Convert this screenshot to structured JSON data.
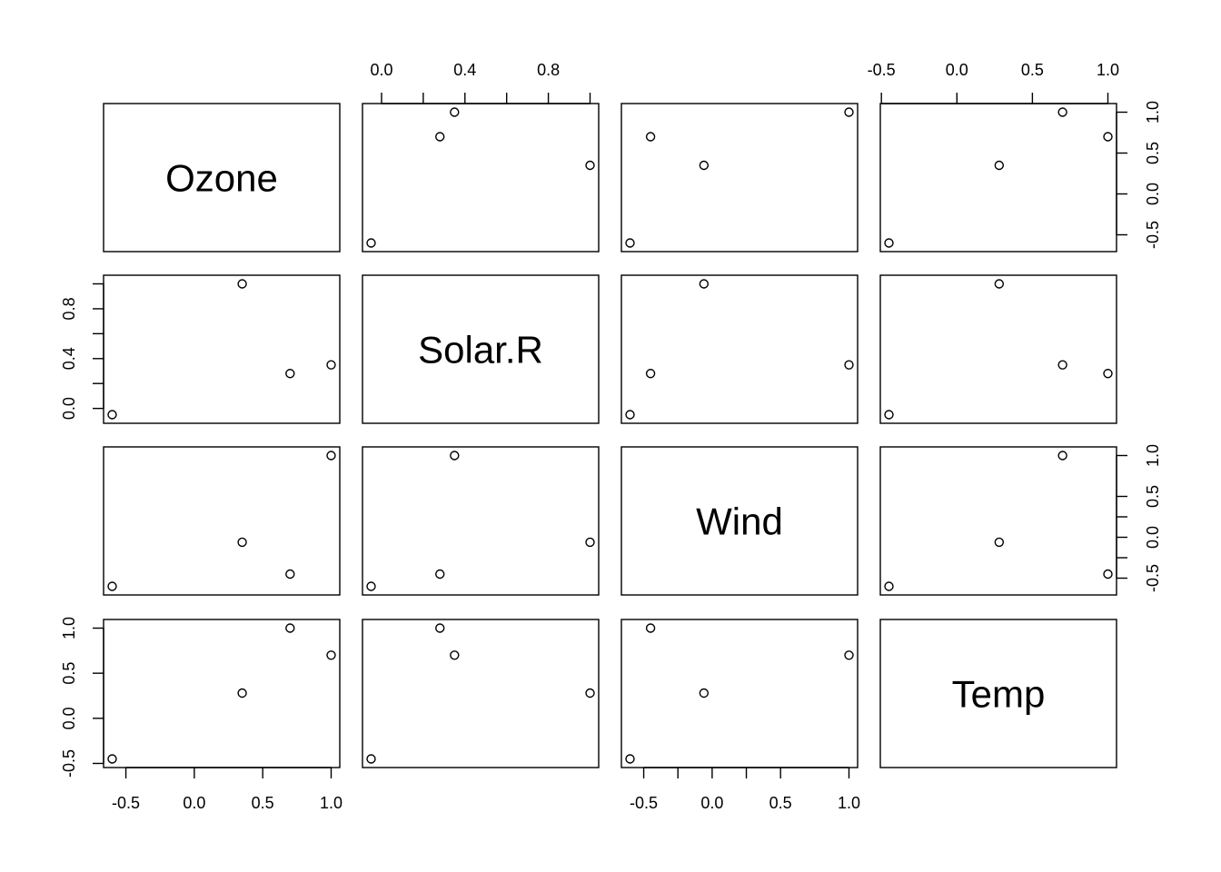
{
  "chart_data": {
    "type": "scatter",
    "subtype": "pairs-matrix",
    "variables": [
      "Ozone",
      "Solar.R",
      "Wind",
      "Temp"
    ],
    "data": {
      "Ozone": [
        -0.6,
        0.35,
        0.7,
        1.0
      ],
      "Solar.R": [
        -0.05,
        1.0,
        0.28,
        0.35
      ],
      "Wind": [
        -0.6,
        -0.06,
        -0.45,
        1.0
      ],
      "Temp": [
        -0.45,
        0.28,
        1.0,
        0.7
      ]
    },
    "ranges": {
      "Ozone": [
        -0.6,
        1.0
      ],
      "Solar.R": [
        -0.05,
        1.0
      ],
      "Wind": [
        -0.6,
        1.0
      ],
      "Temp": [
        -0.45,
        1.0
      ]
    },
    "ticks": {
      "Ozone": [
        "-0.5",
        "0.0",
        "0.5",
        "1.0"
      ],
      "Solar.R": [
        "0.0",
        "0.4",
        "0.8"
      ],
      "Wind": [
        "-0.5",
        "0.0",
        "0.5",
        "1.0"
      ],
      "Temp": [
        "-0.5",
        "0.0",
        "0.5",
        "1.0"
      ]
    },
    "minor_ticks": {
      "Solar.R": [
        0.2,
        0.6,
        1.0
      ],
      "Wind": [
        -0.25,
        0.25
      ]
    },
    "axes": {
      "top": {
        "columns": [
          1,
          3
        ]
      },
      "bottom": {
        "columns": [
          0,
          2
        ]
      },
      "left": {
        "rows": [
          1,
          3
        ]
      },
      "right": {
        "rows": [
          0,
          2
        ]
      }
    },
    "grid": false,
    "legend": "none",
    "point_shape": "open-circle",
    "color": "#000000"
  }
}
